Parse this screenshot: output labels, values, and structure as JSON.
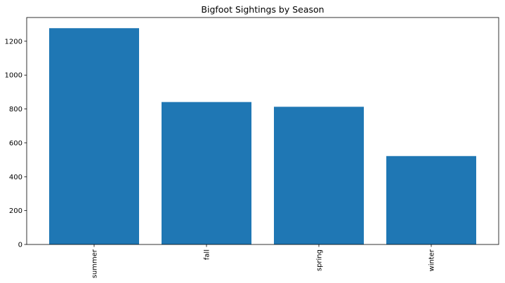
{
  "chart_data": {
    "type": "bar",
    "title": "Bigfoot Sightings by Season",
    "xlabel": "",
    "ylabel": "",
    "categories": [
      "summer",
      "fall",
      "spring",
      "winter"
    ],
    "values": [
      1277,
      841,
      813,
      522
    ],
    "ylim": [
      0,
      1340
    ],
    "yticks": [
      0,
      200,
      400,
      600,
      800,
      1000,
      1200
    ],
    "grid": false,
    "bar_color": "#1f77b4",
    "x_tick_rotation_deg": 90
  }
}
